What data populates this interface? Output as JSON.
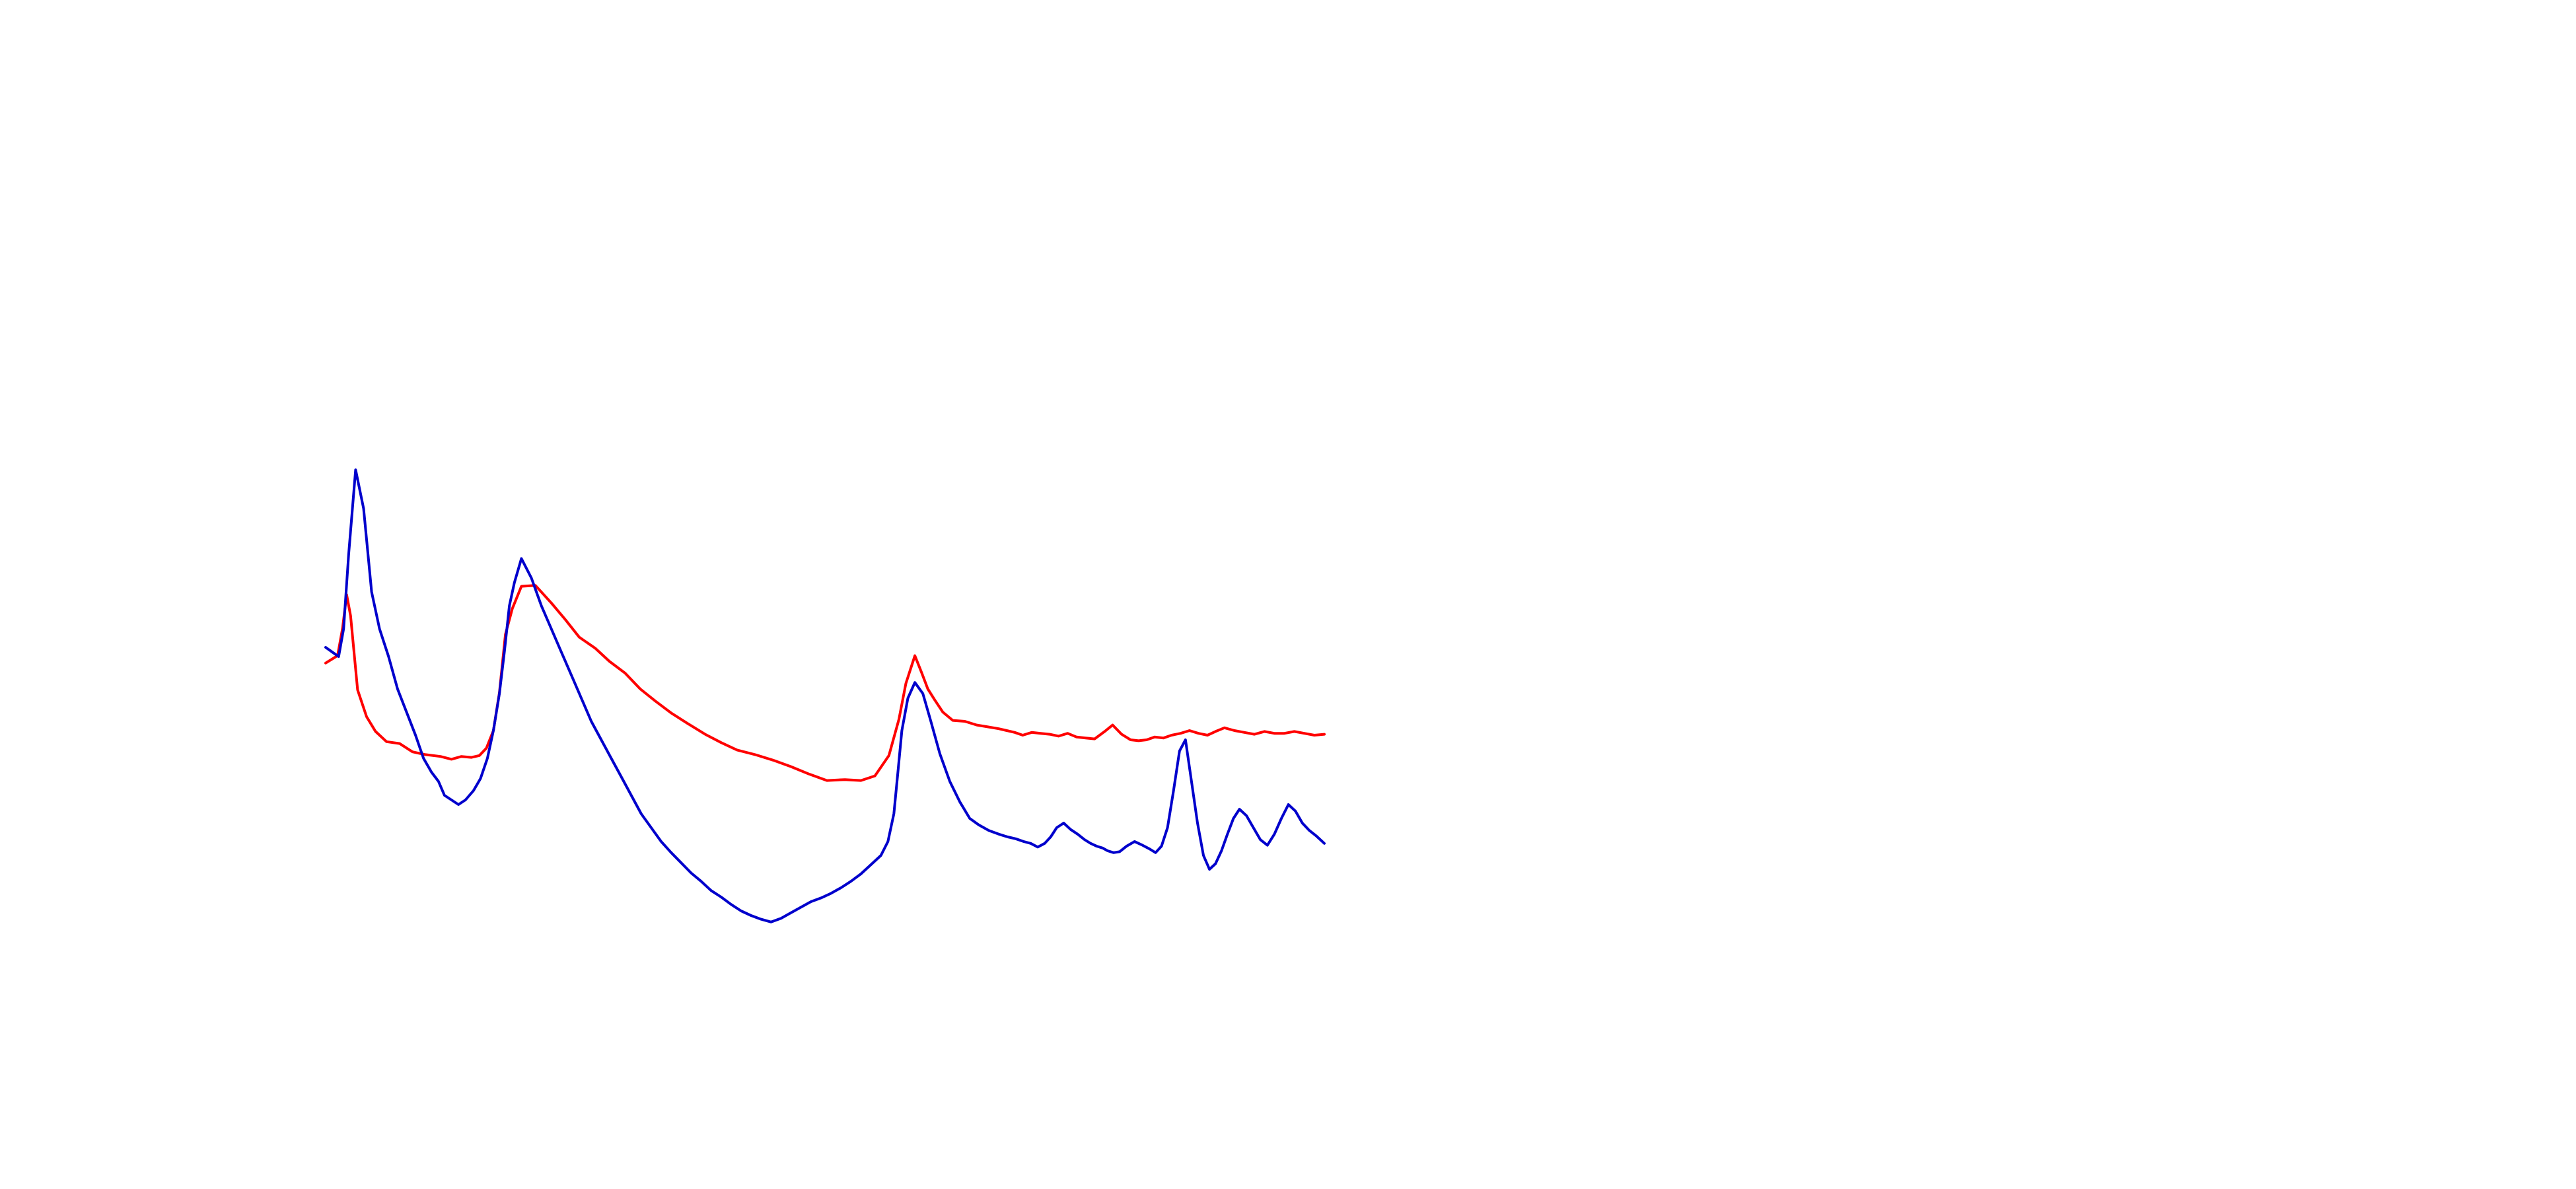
{
  "chart_data": {
    "type": "line",
    "title": "",
    "xlabel": "",
    "ylabel": "",
    "axes_visible": false,
    "grid": false,
    "legend": "none",
    "xlim": [
      0,
      100
    ],
    "ylim": [
      0,
      100
    ],
    "series": [
      {
        "color": "#ff0000",
        "x": [
          0,
          1.2,
          1.7,
          2.1,
          2.5,
          3.2,
          4.1,
          5.0,
          6.1,
          7.4,
          8.7,
          10.0,
          11.5,
          12.6,
          13.6,
          14.6,
          15.4,
          16.1,
          16.8,
          17.4,
          18.0,
          18.7,
          19.6,
          21.0,
          22.6,
          24.0,
          25.4,
          27.0,
          28.4,
          30.0,
          31.5,
          33.0,
          34.6,
          36.2,
          38.0,
          39.6,
          41.2,
          43.0,
          44.8,
          46.6,
          48.4,
          50.2,
          52.0,
          53.6,
          55.0,
          56.4,
          57.4,
          58.1,
          59.0,
          59.7,
          60.3,
          61.0,
          61.8,
          62.8,
          64.0,
          65.2,
          66.3,
          67.4,
          68.2,
          69.0,
          69.8,
          70.7,
          71.6,
          72.5,
          73.4,
          74.3,
          75.2,
          76.1,
          77.0,
          78.0,
          78.8,
          79.7,
          80.6,
          81.4,
          82.2,
          83.0,
          83.9,
          84.7,
          85.6,
          86.5,
          87.4,
          88.3,
          89.1,
          90.0,
          91.0,
          92.0,
          93.0,
          94.0,
          95.0,
          96.0,
          97.0,
          98.0,
          99.0,
          100.0
        ],
        "y": [
          38.3,
          39.1,
          42.1,
          45.7,
          43.4,
          35.4,
          32.5,
          30.9,
          29.8,
          29.6,
          28.7,
          28.4,
          28.2,
          27.9,
          28.2,
          28.1,
          28.3,
          29.1,
          31.0,
          35.1,
          41.4,
          44.2,
          46.6,
          46.7,
          44.8,
          43.0,
          41.1,
          39.9,
          38.5,
          37.2,
          35.5,
          34.2,
          32.9,
          31.8,
          30.6,
          29.7,
          28.9,
          28.4,
          27.8,
          27.1,
          26.3,
          25.6,
          25.7,
          25.6,
          26.1,
          28.3,
          32.2,
          36.1,
          39.1,
          37.2,
          35.5,
          34.3,
          33.0,
          32.1,
          32.0,
          31.6,
          31.4,
          31.2,
          31.0,
          30.8,
          30.5,
          30.8,
          30.7,
          30.6,
          30.4,
          30.7,
          30.3,
          30.2,
          30.1,
          30.9,
          31.6,
          30.6,
          30.0,
          29.9,
          30.0,
          30.3,
          30.2,
          30.5,
          30.7,
          31.0,
          30.7,
          30.5,
          30.9,
          31.3,
          31.0,
          30.8,
          30.6,
          30.9,
          30.7,
          30.7,
          30.9,
          30.7,
          30.5,
          30.6
        ]
      },
      {
        "color": "#0000cc",
        "x": [
          0,
          1.3,
          1.8,
          2.3,
          3.0,
          3.8,
          4.6,
          5.4,
          6.3,
          7.2,
          8.1,
          9.0,
          9.8,
          10.6,
          11.3,
          11.9,
          12.6,
          13.3,
          14.0,
          14.8,
          15.5,
          16.2,
          16.8,
          17.4,
          17.9,
          18.4,
          18.9,
          19.6,
          20.6,
          21.6,
          22.6,
          23.6,
          24.6,
          25.6,
          26.6,
          27.6,
          28.6,
          29.6,
          30.6,
          31.6,
          32.6,
          33.6,
          34.6,
          35.6,
          36.6,
          37.6,
          38.6,
          39.6,
          40.6,
          41.6,
          42.6,
          43.6,
          44.6,
          45.6,
          46.6,
          47.6,
          48.6,
          49.6,
          50.6,
          51.6,
          52.6,
          53.6,
          54.6,
          55.6,
          56.3,
          56.9,
          57.3,
          57.7,
          58.3,
          59.0,
          59.8,
          60.6,
          61.5,
          62.5,
          63.5,
          64.5,
          65.4,
          66.4,
          67.4,
          68.3,
          69.1,
          69.9,
          70.6,
          71.3,
          72.0,
          72.6,
          73.2,
          73.9,
          74.6,
          75.3,
          76.0,
          76.6,
          77.2,
          77.8,
          78.3,
          78.9,
          79.5,
          80.2,
          81.0,
          81.8,
          82.5,
          83.1,
          83.7,
          84.3,
          84.9,
          85.5,
          86.1,
          86.7,
          87.3,
          87.9,
          88.5,
          89.1,
          89.7,
          90.3,
          90.9,
          91.5,
          92.2,
          92.9,
          93.6,
          94.3,
          95.0,
          95.7,
          96.4,
          97.1,
          97.8,
          98.5,
          99.2,
          100.0
        ],
        "y": [
          40.0,
          39.0,
          42.0,
          50.0,
          59.2,
          55.0,
          46.0,
          42.0,
          39.0,
          35.5,
          33.0,
          30.5,
          28.0,
          26.5,
          25.5,
          24.0,
          23.5,
          23.0,
          23.5,
          24.5,
          25.8,
          28.0,
          31.0,
          35.0,
          39.5,
          44.5,
          47.0,
          49.6,
          47.5,
          44.5,
          42.0,
          39.5,
          37.0,
          34.5,
          32.0,
          30.0,
          28.0,
          26.0,
          24.0,
          22.0,
          20.5,
          19.0,
          17.8,
          16.7,
          15.6,
          14.7,
          13.7,
          13.0,
          12.2,
          11.5,
          11.0,
          10.6,
          10.3,
          10.7,
          11.3,
          11.9,
          12.5,
          12.9,
          13.4,
          14.0,
          14.7,
          15.5,
          16.5,
          17.5,
          19.0,
          22.0,
          26.5,
          31.0,
          34.5,
          36.2,
          35.0,
          32.0,
          28.5,
          25.5,
          23.3,
          21.5,
          20.8,
          20.2,
          19.8,
          19.5,
          19.3,
          19.0,
          18.8,
          18.4,
          18.8,
          19.5,
          20.5,
          21.0,
          20.3,
          19.8,
          19.2,
          18.8,
          18.5,
          18.3,
          18.0,
          17.8,
          17.9,
          18.5,
          19.0,
          18.6,
          18.2,
          17.8,
          18.5,
          20.5,
          24.5,
          28.8,
          30.0,
          25.5,
          21.0,
          17.5,
          16.0,
          16.6,
          18.0,
          19.8,
          21.5,
          22.5,
          21.8,
          20.5,
          19.2,
          18.6,
          19.8,
          21.5,
          23.0,
          22.3,
          21.0,
          20.2,
          19.6,
          18.8
        ]
      }
    ]
  }
}
